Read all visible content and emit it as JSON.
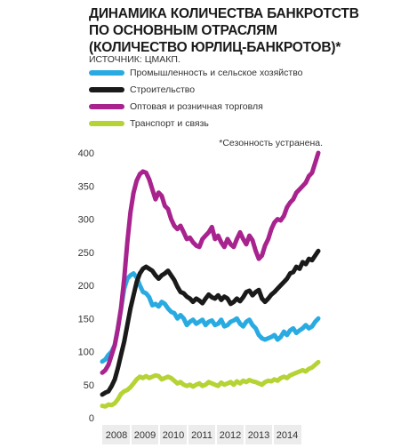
{
  "header": {
    "title_lines": [
      "ДИНАМИКА КОЛИЧЕСТВА БАНКРОТСТВ",
      "ПО ОСНОВНЫМ ОТРАСЛЯМ",
      "(КОЛИЧЕСТВО ЮРЛИЦ-БАНКРОТОВ)*"
    ],
    "source": "ИСТОЧНИК: ЦМАКП.",
    "note": "*Сезонность устранена."
  },
  "chart_data": {
    "type": "line",
    "title": "ДИНАМИКА КОЛИЧЕСТВА БАНКРОТСТВ ПО ОСНОВНЫМ ОТРАСЛЯМ (КОЛИЧЕСТВО ЮРЛИЦ-БАНКРОТОВ)*",
    "ylim": [
      0,
      400
    ],
    "xlim": [
      2008.0,
      2014.9
    ],
    "yticks": [
      0,
      50,
      100,
      150,
      200,
      250,
      300,
      350,
      400
    ],
    "xticks": [
      "2008",
      "2009",
      "2010",
      "2011",
      "2012",
      "2013",
      "2014"
    ],
    "grid": false,
    "legend_position": "top",
    "series": [
      {
        "name": "Промышленность и сельское хозяйство",
        "color": "#29abe2",
        "x": [
          2008.0,
          2008.1,
          2008.2,
          2008.3,
          2008.4,
          2008.5,
          2008.6,
          2008.7,
          2008.8,
          2008.9,
          2009.0,
          2009.1,
          2009.2,
          2009.3,
          2009.4,
          2009.5,
          2009.6,
          2009.7,
          2009.8,
          2009.9,
          2010.0,
          2010.1,
          2010.2,
          2010.3,
          2010.4,
          2010.5,
          2010.6,
          2010.7,
          2010.8,
          2010.9,
          2011.0,
          2011.1,
          2011.2,
          2011.3,
          2011.4,
          2011.5,
          2011.6,
          2011.7,
          2011.8,
          2011.9,
          2012.0,
          2012.1,
          2012.2,
          2012.3,
          2012.4,
          2012.5,
          2012.6,
          2012.7,
          2012.8,
          2012.9,
          2013.0,
          2013.1,
          2013.2,
          2013.3,
          2013.4,
          2013.5,
          2013.6,
          2013.7,
          2013.8,
          2013.9,
          2014.0,
          2014.1,
          2014.2,
          2014.3,
          2014.4,
          2014.5,
          2014.6,
          2014.7,
          2014.8,
          2014.9
        ],
        "values": [
          85,
          88,
          95,
          100,
          110,
          135,
          165,
          195,
          210,
          215,
          218,
          212,
          200,
          190,
          188,
          182,
          170,
          172,
          168,
          175,
          172,
          165,
          160,
          158,
          150,
          155,
          150,
          140,
          145,
          148,
          142,
          145,
          148,
          140,
          145,
          147,
          140,
          142,
          148,
          138,
          140,
          145,
          147,
          150,
          142,
          138,
          145,
          148,
          140,
          135,
          125,
          120,
          118,
          120,
          122,
          125,
          118,
          122,
          130,
          125,
          132,
          135,
          128,
          132,
          135,
          140,
          135,
          138,
          145,
          150
        ]
      },
      {
        "name": "Строительство",
        "color": "#1a1a1a",
        "x": [
          2008.0,
          2008.1,
          2008.2,
          2008.3,
          2008.4,
          2008.5,
          2008.6,
          2008.7,
          2008.8,
          2008.9,
          2009.0,
          2009.1,
          2009.2,
          2009.3,
          2009.4,
          2009.5,
          2009.6,
          2009.7,
          2009.8,
          2009.9,
          2010.0,
          2010.1,
          2010.2,
          2010.3,
          2010.4,
          2010.5,
          2010.6,
          2010.7,
          2010.8,
          2010.9,
          2011.0,
          2011.1,
          2011.2,
          2011.3,
          2011.4,
          2011.5,
          2011.6,
          2011.7,
          2011.8,
          2011.9,
          2012.0,
          2012.1,
          2012.2,
          2012.3,
          2012.4,
          2012.5,
          2012.6,
          2012.7,
          2012.8,
          2012.9,
          2013.0,
          2013.1,
          2013.2,
          2013.3,
          2013.4,
          2013.5,
          2013.6,
          2013.7,
          2013.8,
          2013.9,
          2014.0,
          2014.1,
          2014.2,
          2014.3,
          2014.4,
          2014.5,
          2014.6,
          2014.7,
          2014.8,
          2014.9
        ],
        "values": [
          35,
          38,
          40,
          48,
          58,
          75,
          95,
          115,
          140,
          165,
          185,
          205,
          218,
          225,
          228,
          225,
          222,
          215,
          210,
          215,
          218,
          222,
          215,
          208,
          198,
          190,
          188,
          183,
          180,
          175,
          180,
          177,
          173,
          180,
          186,
          182,
          180,
          185,
          178,
          183,
          180,
          172,
          175,
          180,
          176,
          182,
          190,
          192,
          185,
          190,
          193,
          180,
          175,
          180,
          186,
          190,
          195,
          200,
          205,
          210,
          218,
          220,
          228,
          225,
          235,
          232,
          240,
          238,
          245,
          252
        ]
      },
      {
        "name": "Оптовая и розничная торговля",
        "color": "#a8238e",
        "x": [
          2008.0,
          2008.1,
          2008.2,
          2008.3,
          2008.4,
          2008.5,
          2008.6,
          2008.7,
          2008.8,
          2008.9,
          2009.0,
          2009.1,
          2009.2,
          2009.3,
          2009.4,
          2009.5,
          2009.6,
          2009.7,
          2009.8,
          2009.9,
          2010.0,
          2010.1,
          2010.2,
          2010.3,
          2010.4,
          2010.5,
          2010.6,
          2010.7,
          2010.8,
          2010.9,
          2011.0,
          2011.1,
          2011.2,
          2011.3,
          2011.4,
          2011.5,
          2011.6,
          2011.7,
          2011.8,
          2011.9,
          2012.0,
          2012.1,
          2012.2,
          2012.3,
          2012.4,
          2012.5,
          2012.6,
          2012.7,
          2012.8,
          2012.9,
          2013.0,
          2013.1,
          2013.2,
          2013.3,
          2013.4,
          2013.5,
          2013.6,
          2013.7,
          2013.8,
          2013.9,
          2014.0,
          2014.1,
          2014.2,
          2014.3,
          2014.4,
          2014.5,
          2014.6,
          2014.7,
          2014.8,
          2014.9
        ],
        "values": [
          68,
          72,
          80,
          95,
          110,
          135,
          165,
          210,
          265,
          310,
          340,
          358,
          368,
          372,
          370,
          360,
          345,
          330,
          340,
          335,
          320,
          315,
          300,
          290,
          285,
          290,
          280,
          270,
          272,
          265,
          260,
          258,
          270,
          275,
          280,
          288,
          270,
          275,
          265,
          258,
          270,
          262,
          258,
          270,
          280,
          270,
          262,
          275,
          268,
          252,
          240,
          245,
          260,
          270,
          285,
          295,
          300,
          298,
          305,
          318,
          325,
          330,
          340,
          345,
          350,
          355,
          365,
          370,
          385,
          400
        ]
      },
      {
        "name": "Транспорт и связь",
        "color": "#b5d334",
        "x": [
          2008.0,
          2008.1,
          2008.2,
          2008.3,
          2008.4,
          2008.5,
          2008.6,
          2008.7,
          2008.8,
          2008.9,
          2009.0,
          2009.1,
          2009.2,
          2009.3,
          2009.4,
          2009.5,
          2009.6,
          2009.7,
          2009.8,
          2009.9,
          2010.0,
          2010.1,
          2010.2,
          2010.3,
          2010.4,
          2010.5,
          2010.6,
          2010.7,
          2010.8,
          2010.9,
          2011.0,
          2011.1,
          2011.2,
          2011.3,
          2011.4,
          2011.5,
          2011.6,
          2011.7,
          2011.8,
          2011.9,
          2012.0,
          2012.1,
          2012.2,
          2012.3,
          2012.4,
          2012.5,
          2012.6,
          2012.7,
          2012.8,
          2012.9,
          2013.0,
          2013.1,
          2013.2,
          2013.3,
          2013.4,
          2013.5,
          2013.6,
          2013.7,
          2013.8,
          2013.9,
          2014.0,
          2014.1,
          2014.2,
          2014.3,
          2014.4,
          2014.5,
          2014.6,
          2014.7,
          2014.8,
          2014.9
        ],
        "values": [
          18,
          17,
          20,
          19,
          22,
          28,
          36,
          40,
          42,
          46,
          52,
          58,
          62,
          60,
          63,
          60,
          62,
          64,
          63,
          58,
          60,
          62,
          60,
          56,
          52,
          54,
          50,
          48,
          50,
          47,
          50,
          52,
          48,
          50,
          54,
          52,
          50,
          48,
          53,
          50,
          52,
          54,
          50,
          55,
          52,
          56,
          54,
          57,
          55,
          54,
          52,
          50,
          54,
          56,
          55,
          58,
          56,
          60,
          62,
          60,
          64,
          66,
          68,
          70,
          72,
          70,
          74,
          76,
          80,
          84
        ]
      }
    ]
  }
}
